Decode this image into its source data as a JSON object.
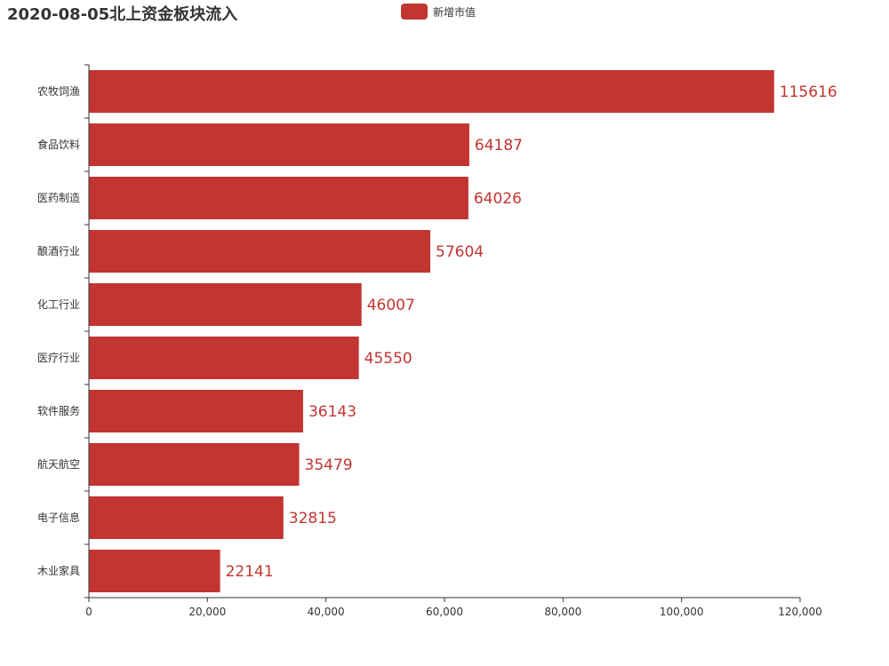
{
  "chart_data": {
    "type": "bar",
    "orientation": "horizontal",
    "title": "2020-08-05北上资金板块流入",
    "categories": [
      "农牧饲渔",
      "食品饮料",
      "医药制造",
      "酿酒行业",
      "化工行业",
      "医疗行业",
      "软件服务",
      "航天航空",
      "电子信息",
      "木业家具"
    ],
    "series": [
      {
        "name": "新增市值",
        "values": [
          115616,
          64187,
          64026,
          57604,
          46007,
          45550,
          36143,
          35479,
          32815,
          22141
        ],
        "color": "#c23531"
      }
    ],
    "data_labels": [
      "115616",
      "64187",
      "64026",
      "57604",
      "46007",
      "45550",
      "36143",
      "35479",
      "32815",
      "22141"
    ],
    "x_ticks": [
      0,
      20000,
      40000,
      60000,
      80000,
      100000,
      120000
    ],
    "x_tick_labels": [
      "0",
      "20,000",
      "40,000",
      "60,000",
      "80,000",
      "100,000",
      "120,000"
    ],
    "xlim": [
      0,
      120000
    ],
    "xlabel": "",
    "ylabel": "",
    "grid": false,
    "legend_position": "top-center",
    "axis_color": "#333333"
  }
}
